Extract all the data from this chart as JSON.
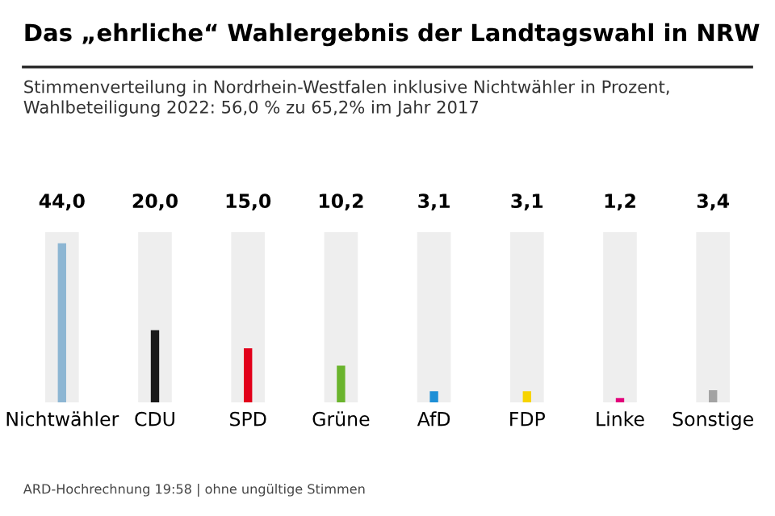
{
  "chart_data": {
    "type": "bar",
    "title": "Das „ehrliche“ Wahlergebnis der Landtagswahl in NRW",
    "subtitle": "Stimmenverteilung in Nordrhein-Westfalen inklusive Nichtwähler in Prozent,\nWahlbeteiligung 2022: 56,0 % zu 65,2% im Jahr 2017",
    "categories": [
      "Nichtwähler",
      "CDU",
      "SPD",
      "Grüne",
      "AfD",
      "FDP",
      "Linke",
      "Sonstige"
    ],
    "values": [
      44.0,
      20.0,
      15.0,
      10.2,
      3.1,
      3.1,
      1.2,
      3.4
    ],
    "value_labels": [
      "44,0",
      "20,0",
      "15,0",
      "10,2",
      "3,1",
      "3,1",
      "1,2",
      "3,4"
    ],
    "colors": [
      "#8db6d3",
      "#1a1a1a",
      "#e2001a",
      "#6ab42d",
      "#1e8fd6",
      "#f7d400",
      "#e2007a",
      "#a3a3a3"
    ],
    "grid": "x",
    "annotations": [
      "ARD-Hochrechnung 19:58 | ohne ungültige Stimmen"
    ]
  }
}
